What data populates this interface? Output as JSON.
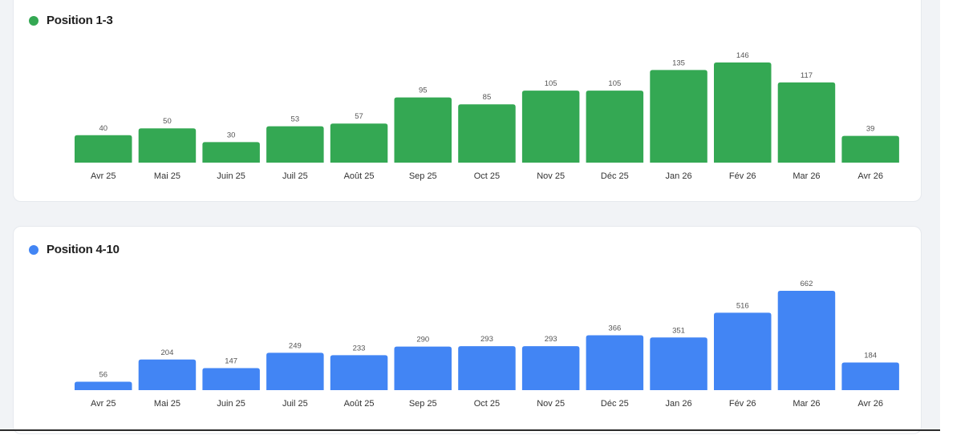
{
  "colors": {
    "green": "#34a853",
    "blue": "#4285f4",
    "card_bg": "#ffffff",
    "page_bg": "#f1f3f6"
  },
  "chart_data": [
    {
      "type": "bar",
      "title": "Position 1-3",
      "color": "#34a853",
      "categories": [
        "Avr 25",
        "Mai 25",
        "Juin 25",
        "Juil 25",
        "Août 25",
        "Sep 25",
        "Oct 25",
        "Nov 25",
        "Déc 25",
        "Jan 26",
        "Fév 26",
        "Mar 26",
        "Avr 26"
      ],
      "values": [
        40,
        50,
        30,
        53,
        57,
        95,
        85,
        105,
        105,
        135,
        146,
        117,
        39
      ],
      "xlabel": "",
      "ylabel": ""
    },
    {
      "type": "bar",
      "title": "Position 4-10",
      "color": "#4285f4",
      "categories": [
        "Avr 25",
        "Mai 25",
        "Juin 25",
        "Juil 25",
        "Août 25",
        "Sep 25",
        "Oct 25",
        "Nov 25",
        "Déc 25",
        "Jan 26",
        "Fév 26",
        "Mar 26",
        "Avr 26"
      ],
      "values": [
        56,
        204,
        147,
        249,
        233,
        290,
        293,
        293,
        366,
        351,
        516,
        662,
        184
      ],
      "xlabel": "",
      "ylabel": ""
    }
  ]
}
